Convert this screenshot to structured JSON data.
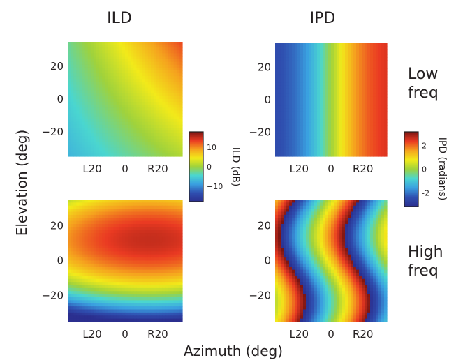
{
  "chart_data": {
    "type": "heatmap",
    "xlabel": "Azimuth (deg)",
    "ylabel": "Elevation (deg)",
    "column_titles": [
      "ILD",
      "IPD"
    ],
    "row_labels": [
      [
        "Low",
        "freq"
      ],
      [
        "High",
        "freq"
      ]
    ],
    "x_ticks": [
      "L20",
      "0",
      "R20"
    ],
    "x_tick_values": [
      -20,
      0,
      20
    ],
    "xlim": [
      -35,
      35
    ],
    "y_ticks": [
      "20",
      "0",
      "−20"
    ],
    "y_tick_values": [
      20,
      0,
      -20
    ],
    "ylim": [
      -35,
      35
    ],
    "colorbars": [
      {
        "label": "ILD (dB)",
        "ticks": [
          "10",
          "0",
          "−10"
        ],
        "tick_values": [
          10,
          0,
          -10
        ],
        "range": [
          -18,
          18
        ]
      },
      {
        "label": "IPD (radians)",
        "ticks": [
          "2",
          "0",
          "-2"
        ],
        "tick_values": [
          2,
          0,
          -2
        ],
        "range": [
          -3.14,
          3.14
        ]
      }
    ],
    "panels": [
      {
        "id": "ild-low",
        "measure": "ILD",
        "band": "Low freq",
        "range": [
          -18,
          18
        ],
        "description": "smooth gradient increasing toward right and upper elevations; about -6 dB at lower-left to +8 dB at upper-right"
      },
      {
        "id": "ipd-low",
        "measure": "IPD",
        "band": "Low freq",
        "range": [
          -3.14,
          3.14
        ],
        "description": "vertical bands; phase increases monotonically from about -2.5 rad at left to +2.7 rad at right"
      },
      {
        "id": "ild-high",
        "measure": "ILD",
        "band": "High freq",
        "range": [
          -18,
          18
        ],
        "description": "strong elevation dependence; maximum about +15 dB near elevation 12 deg on right side, minimum about -12 dB at lowest elevations"
      },
      {
        "id": "ipd-high",
        "measure": "IPD",
        "band": "High freq",
        "range": [
          -3.14,
          3.14
        ],
        "description": "phase wraps across azimuth producing curved S-shaped stripes"
      }
    ],
    "colormap": "jet",
    "grid": false,
    "legend": "colorbars at right of each column"
  }
}
